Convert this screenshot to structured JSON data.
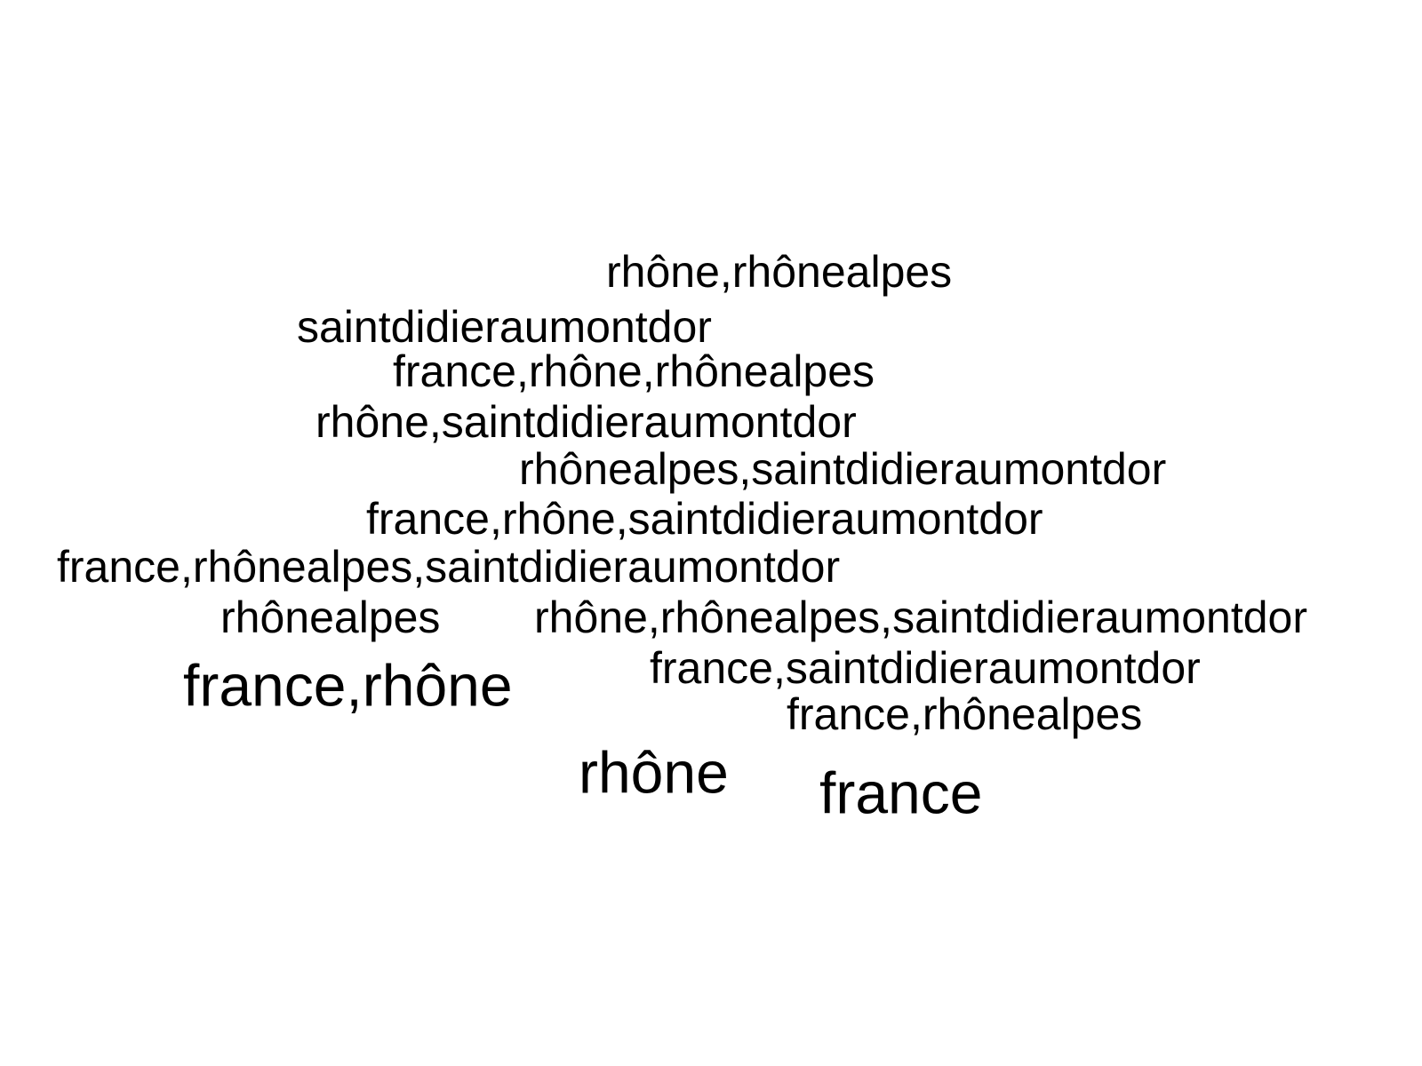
{
  "word_cloud": {
    "text_color": "#000000",
    "background_color": "#ffffff",
    "words": [
      {
        "text": "rhône,rhônealpes",
        "weight": 1
      },
      {
        "text": "saintdidieraumontdor",
        "weight": 1
      },
      {
        "text": "france,rhône,rhônealpes",
        "weight": 1
      },
      {
        "text": "rhône,saintdidieraumontdor",
        "weight": 1
      },
      {
        "text": "rhônealpes,saintdidieraumontdor",
        "weight": 1
      },
      {
        "text": "france,rhône,saintdidieraumontdor",
        "weight": 1
      },
      {
        "text": "france,rhônealpes,saintdidieraumontdor",
        "weight": 1
      },
      {
        "text": "rhônealpes",
        "weight": 1
      },
      {
        "text": "rhône,rhônealpes,saintdidieraumontdor",
        "weight": 1
      },
      {
        "text": "france,rhône",
        "weight": 2
      },
      {
        "text": "france,saintdidieraumontdor",
        "weight": 1
      },
      {
        "text": "france,rhônealpes",
        "weight": 1
      },
      {
        "text": "rhône",
        "weight": 2
      },
      {
        "text": "france",
        "weight": 2
      }
    ]
  }
}
